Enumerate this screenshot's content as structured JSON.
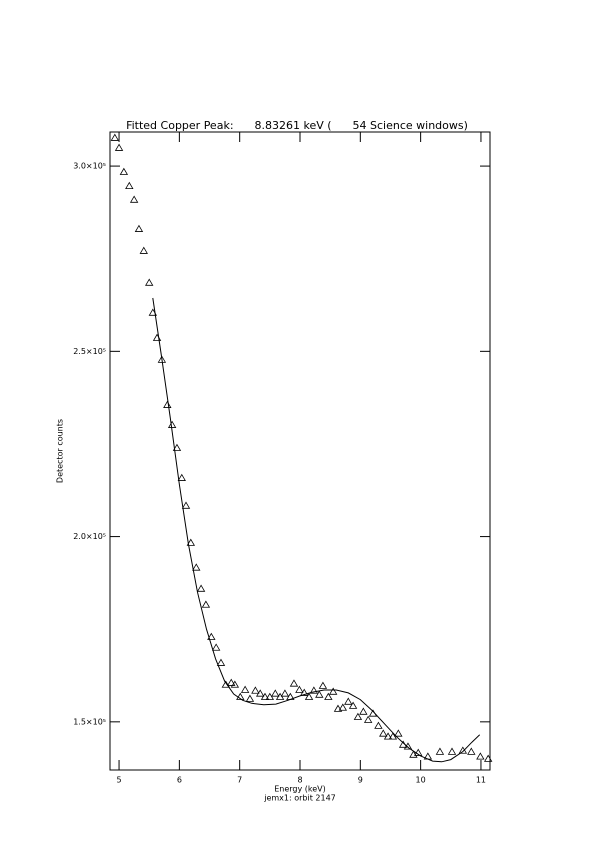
{
  "chart_data": {
    "type": "scatter",
    "title": "Fitted Copper Peak:      8.83261 keV (      54 Science windows)",
    "x_label": "Energy (keV)",
    "y_label": "Detector counts",
    "caption": "jemx1: orbit 2147",
    "xlim": [
      4.85,
      11.15
    ],
    "ylim": [
      137000,
      309200
    ],
    "xticks": [
      5,
      6,
      7,
      8,
      9,
      10,
      11
    ],
    "yticks": [
      {
        "value": 150000,
        "label": "1.5×10⁵"
      },
      {
        "value": 200000,
        "label": "2.0×10⁵"
      },
      {
        "value": 250000,
        "label": "2.5×10⁵"
      },
      {
        "value": 300000,
        "label": "3.0×10⁵"
      }
    ],
    "series": [
      {
        "marker": "triangle",
        "color": "#000000",
        "x": [
          4.93,
          5.0,
          5.08,
          5.17,
          5.25,
          5.33,
          5.41,
          5.5,
          5.56,
          5.63,
          5.71,
          5.8,
          5.88,
          5.96,
          6.04,
          6.11,
          6.19,
          6.28,
          6.36,
          6.44,
          6.53,
          6.61,
          6.69,
          6.77,
          6.86,
          6.92,
          7.01,
          7.09,
          7.17,
          7.26,
          7.34,
          7.42,
          7.5,
          7.59,
          7.67,
          7.75,
          7.84,
          7.9,
          7.99,
          8.07,
          8.15,
          8.23,
          8.32,
          8.38,
          8.47,
          8.55,
          8.63,
          8.71,
          8.8,
          8.88,
          8.96,
          9.05,
          9.13,
          9.21,
          9.3,
          9.38,
          9.46,
          9.54,
          9.63,
          9.71,
          9.79,
          9.88,
          9.96,
          10.12,
          10.32,
          10.52,
          10.7,
          10.84,
          10.99,
          11.12
        ],
        "values": [
          307600,
          304900,
          298400,
          294600,
          290900,
          283000,
          277100,
          268500,
          260400,
          253600,
          247700,
          235500,
          230100,
          223900,
          215800,
          208300,
          198300,
          191600,
          185900,
          181600,
          172900,
          170000,
          165900,
          160000,
          160500,
          160000,
          156700,
          158600,
          156200,
          158400,
          157600,
          156700,
          156700,
          157600,
          156700,
          157600,
          156700,
          160300,
          158600,
          157800,
          156700,
          158400,
          157300,
          159700,
          156700,
          158100,
          153500,
          153800,
          155400,
          154300,
          151300,
          152700,
          150500,
          152200,
          148900,
          146800,
          146000,
          146000,
          146800,
          143800,
          143300,
          141100,
          141600,
          140600,
          141900,
          141900,
          142200,
          141900,
          140600,
          140000
        ]
      },
      {
        "line": true,
        "color": "#000000",
        "x": [
          5.56,
          5.7,
          5.85,
          6.0,
          6.15,
          6.3,
          6.45,
          6.6,
          6.75,
          6.9,
          7.05,
          7.2,
          7.4,
          7.6,
          7.8,
          8.0,
          8.2,
          8.4,
          8.6,
          8.8,
          9.0,
          9.2,
          9.4,
          9.6,
          9.8,
          10.0,
          10.2,
          10.35,
          10.5,
          10.7,
          10.85,
          10.98
        ],
        "values": [
          264400,
          249000,
          232000,
          214000,
          198000,
          185000,
          175000,
          167000,
          161000,
          157500,
          155800,
          155000,
          154600,
          154800,
          155800,
          157000,
          158000,
          158600,
          158600,
          157800,
          156000,
          153000,
          149500,
          146000,
          143000,
          140800,
          139400,
          139200,
          139800,
          142000,
          144500,
          146500
        ]
      }
    ]
  }
}
